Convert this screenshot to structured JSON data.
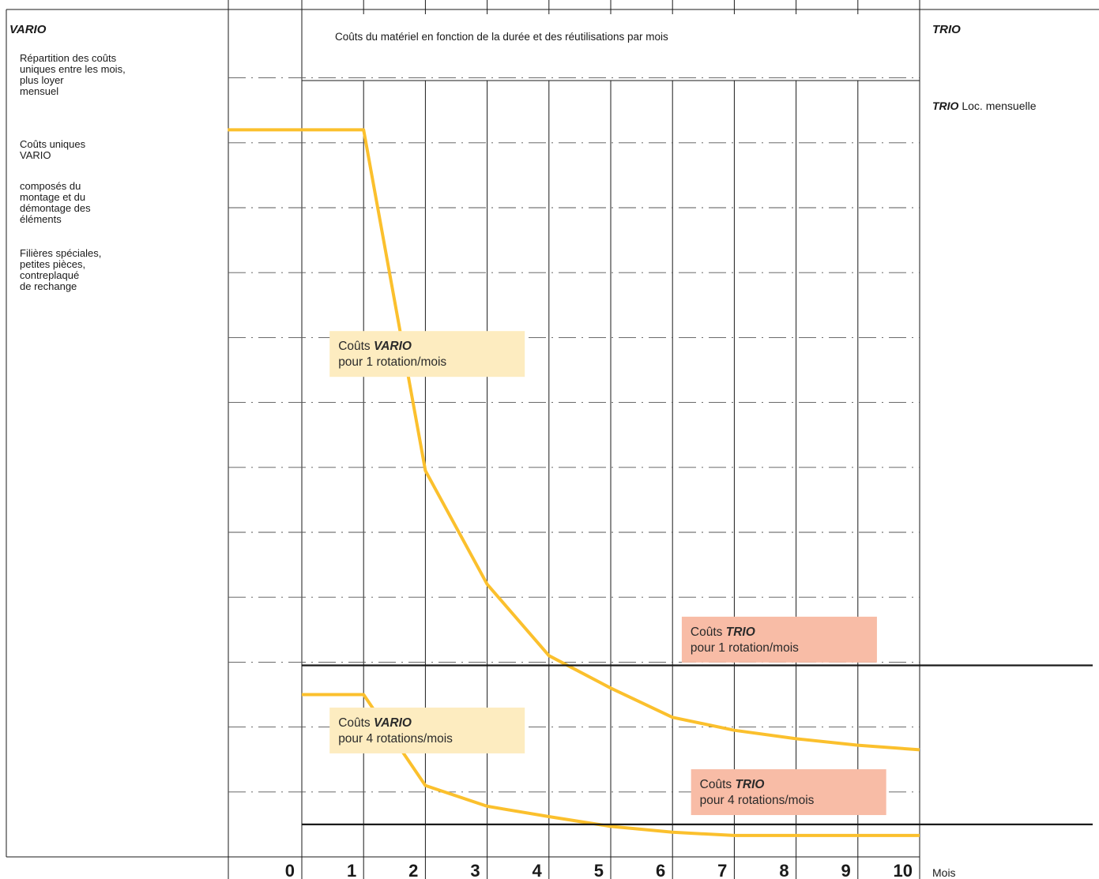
{
  "left_panel": {
    "header": "VARIO",
    "blocks": [
      [
        "Répartition des coûts",
        "uniques entre les mois,",
        "plus loyer",
        "mensuel"
      ],
      [
        "Coûts uniques",
        "VARIO"
      ],
      [
        "composés du",
        "montage et du",
        "démontage des",
        "éléments"
      ],
      [
        "Filières spéciales,",
        "petites pièces,",
        "contreplaqué",
        "de rechange"
      ]
    ]
  },
  "right_panel": {
    "header": "TRIO",
    "label_bold": "TRIO",
    "label_rest": " Loc. mensuelle"
  },
  "chart_data": {
    "type": "line",
    "title": "Coûts du matériel en fonction de la durée et des réutilisations par mois",
    "xlabel": "Mois",
    "x_ticks": [
      "0",
      "1",
      "2",
      "3",
      "4",
      "5",
      "6",
      "7",
      "8",
      "9",
      "10"
    ],
    "xlim": [
      0,
      10
    ],
    "ylim": [
      0,
      12
    ],
    "grid": true,
    "series": [
      {
        "key": "vario1",
        "color": "#fbc02d",
        "points": [
          [
            -1.2,
            11.2
          ],
          [
            1,
            11.2
          ],
          [
            2,
            5.95
          ],
          [
            3,
            4.2
          ],
          [
            4,
            3.1
          ],
          [
            5,
            2.6
          ],
          [
            6,
            2.15
          ],
          [
            7,
            1.95
          ],
          [
            8,
            1.82
          ],
          [
            9,
            1.72
          ],
          [
            10,
            1.65
          ]
        ]
      },
      {
        "key": "vario4",
        "color": "#fbc02d",
        "points": [
          [
            0,
            2.5
          ],
          [
            1,
            2.5
          ],
          [
            2,
            1.1
          ],
          [
            3,
            0.78
          ],
          [
            4,
            0.62
          ],
          [
            5,
            0.47
          ],
          [
            6,
            0.38
          ],
          [
            7,
            0.33
          ],
          [
            8,
            0.33
          ],
          [
            9,
            0.33
          ],
          [
            10,
            0.33
          ]
        ]
      },
      {
        "key": "trio1",
        "color": "#1a1a1a",
        "points": [
          [
            0,
            2.95
          ],
          [
            10,
            2.95
          ],
          [
            12.8,
            2.95
          ]
        ]
      },
      {
        "key": "trio4",
        "color": "#1a1a1a",
        "points": [
          [
            0,
            0.5
          ],
          [
            10,
            0.5
          ],
          [
            12.8,
            0.5
          ]
        ]
      }
    ],
    "annotations": [
      {
        "key": "vario1",
        "text_before": "Coûts ",
        "text_bold": "VARIO",
        "line2": "pour 1 rotation/mois",
        "color": "#fdecc0",
        "anchor": [
          0.45,
          8.1
        ]
      },
      {
        "key": "trio1",
        "text_before": "Coûts ",
        "text_bold": "TRIO",
        "line2": "pour 1 rotation/mois",
        "color": "#f8bca6",
        "anchor": [
          6.15,
          3.7
        ]
      },
      {
        "key": "vario4",
        "text_before": "Coûts ",
        "text_bold": "VARIO",
        "line2": "pour 4 rotations/mois",
        "color": "#fdecc0",
        "anchor": [
          0.45,
          2.3
        ]
      },
      {
        "key": "trio4",
        "text_before": "Coûts ",
        "text_bold": "TRIO",
        "line2": "pour 4 rotations/mois",
        "color": "#f8bca6",
        "anchor": [
          6.3,
          1.35
        ]
      }
    ]
  }
}
